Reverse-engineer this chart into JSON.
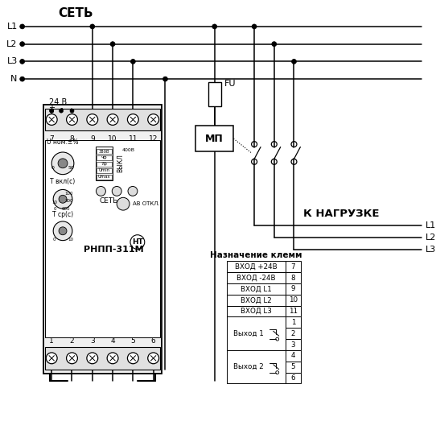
{
  "bg_color": "#ffffff",
  "title_sety": "СЕТЬ",
  "title_nagruzke": "К НАГРУЗКЕ",
  "label_fu": "FU",
  "label_mp": "МП",
  "label_24v": "24 В",
  "label_rnpp": "РНПП-311М",
  "label_sety_panel": "СЕТЬ",
  "label_av_otkl": "АВ ОТКЛ.",
  "label_u_nom": "U ном.±%",
  "label_t_vkl": "Т вкл(с)",
  "label_t_sr": "Т ср(с)",
  "label_vykl": "ВЫКЛ",
  "table_title": "Назначение клемм",
  "table_rows": [
    [
      "ВХОД +24В",
      "7"
    ],
    [
      "ВХОД -24В",
      "8"
    ],
    [
      "ВХОД L1",
      "9"
    ],
    [
      "ВХОД L2",
      "10"
    ],
    [
      "ВХОД L3",
      "11"
    ]
  ],
  "output_groups": [
    {
      "label": "Выход 1",
      "nums": [
        "1",
        "2",
        "3"
      ]
    },
    {
      "label": "Выход 2",
      "nums": [
        "4",
        "5",
        "6"
      ]
    }
  ],
  "lines_L": [
    "L1",
    "L2",
    "L3",
    "N"
  ],
  "nagruzke_L": [
    "L1",
    "L2",
    "L3"
  ],
  "top_terminals": [
    "7",
    "8",
    "9",
    "10",
    "11",
    "12"
  ],
  "bot_terminals": [
    "1",
    "2",
    "3",
    "4",
    "5",
    "6"
  ],
  "vs_rows": [
    "380В",
    "чф",
    "7ф",
    "Umin",
    "Umax"
  ],
  "t_vkl_ticks": [
    "10",
    "100",
    "300",
    "0",
    "600"
  ],
  "t_sr_ticks": [
    "0",
    "10"
  ]
}
